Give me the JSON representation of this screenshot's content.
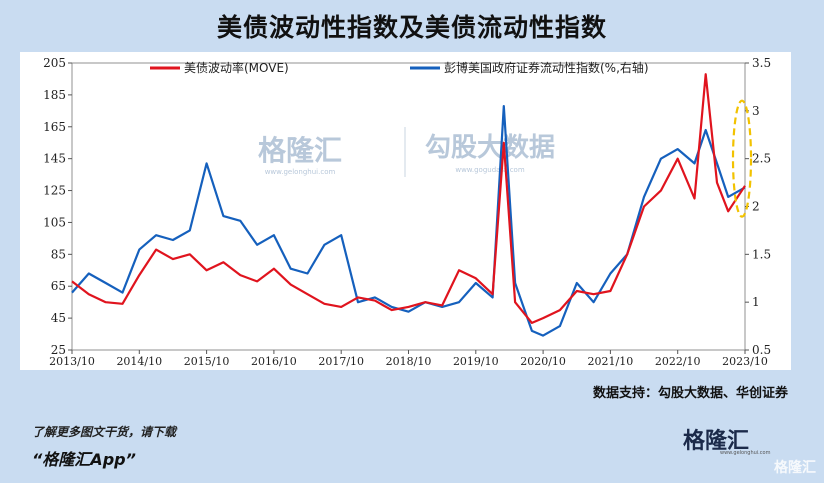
{
  "title": "美债波动性指数及美债流动性指数",
  "source": "数据支持：勾股大数据、华创证券",
  "footer": {
    "line1": "了解更多图文干货，请下载",
    "line2": "“格隆汇App”"
  },
  "brand": {
    "name": "格隆汇",
    "site": "www.gelonghui.com",
    "corner": "格隆汇"
  },
  "watermark": {
    "left_name": "格隆汇",
    "left_site": "www.gelonghui.com",
    "right_name": "勾股大数据",
    "right_site": "www.gogudata.com"
  },
  "colors": {
    "move": "#e0141e",
    "liquidity": "#1560bd",
    "highlight": "#f2c200"
  },
  "chart_data": {
    "type": "line",
    "x": [
      "2013/10",
      "2014/10",
      "2015/10",
      "2016/10",
      "2017/10",
      "2018/10",
      "2019/10",
      "2020/10",
      "2021/10",
      "2022/10",
      "2023/10"
    ],
    "x_start": "2013/10",
    "x_end": "2023/10",
    "y_left": {
      "ticks": [
        25,
        45,
        65,
        85,
        105,
        125,
        145,
        165,
        185,
        205
      ],
      "lim": [
        25,
        205
      ]
    },
    "y_right": {
      "ticks": [
        0.5,
        1,
        1.5,
        2,
        2.5,
        3,
        3.5
      ],
      "lim": [
        0.5,
        3.5
      ]
    },
    "series": [
      {
        "name": "美债波动率(MOVE)",
        "axis": "left",
        "color": "#e0141e",
        "points": [
          [
            "2013/10",
            68
          ],
          [
            "2014/01",
            60
          ],
          [
            "2014/04",
            55
          ],
          [
            "2014/07",
            54
          ],
          [
            "2014/10",
            72
          ],
          [
            "2015/01",
            88
          ],
          [
            "2015/04",
            82
          ],
          [
            "2015/07",
            85
          ],
          [
            "2015/10",
            75
          ],
          [
            "2016/01",
            80
          ],
          [
            "2016/04",
            72
          ],
          [
            "2016/07",
            68
          ],
          [
            "2016/10",
            76
          ],
          [
            "2017/01",
            66
          ],
          [
            "2017/04",
            60
          ],
          [
            "2017/07",
            54
          ],
          [
            "2017/10",
            52
          ],
          [
            "2018/01",
            58
          ],
          [
            "2018/04",
            56
          ],
          [
            "2018/07",
            50
          ],
          [
            "2018/10",
            52
          ],
          [
            "2019/01",
            55
          ],
          [
            "2019/04",
            53
          ],
          [
            "2019/07",
            75
          ],
          [
            "2019/10",
            70
          ],
          [
            "2020/01",
            60
          ],
          [
            "2020/03",
            155
          ],
          [
            "2020/05",
            55
          ],
          [
            "2020/08",
            42
          ],
          [
            "2020/10",
            45
          ],
          [
            "2021/01",
            50
          ],
          [
            "2021/04",
            62
          ],
          [
            "2021/07",
            60
          ],
          [
            "2021/10",
            62
          ],
          [
            "2022/01",
            85
          ],
          [
            "2022/04",
            115
          ],
          [
            "2022/07",
            125
          ],
          [
            "2022/10",
            145
          ],
          [
            "2023/01",
            120
          ],
          [
            "2023/03",
            198
          ],
          [
            "2023/05",
            130
          ],
          [
            "2023/07",
            112
          ],
          [
            "2023/10",
            128
          ]
        ]
      },
      {
        "name": "彭博美国政府证券流动性指数(%,右轴)",
        "axis": "right",
        "color": "#1560bd",
        "points": [
          [
            "2013/10",
            1.1
          ],
          [
            "2014/01",
            1.3
          ],
          [
            "2014/04",
            1.2
          ],
          [
            "2014/07",
            1.1
          ],
          [
            "2014/10",
            1.55
          ],
          [
            "2015/01",
            1.7
          ],
          [
            "2015/04",
            1.65
          ],
          [
            "2015/07",
            1.75
          ],
          [
            "2015/10",
            2.45
          ],
          [
            "2016/01",
            1.9
          ],
          [
            "2016/04",
            1.85
          ],
          [
            "2016/07",
            1.6
          ],
          [
            "2016/10",
            1.7
          ],
          [
            "2017/01",
            1.35
          ],
          [
            "2017/04",
            1.3
          ],
          [
            "2017/07",
            1.6
          ],
          [
            "2017/10",
            1.7
          ],
          [
            "2018/01",
            1.0
          ],
          [
            "2018/04",
            1.05
          ],
          [
            "2018/07",
            0.95
          ],
          [
            "2018/10",
            0.9
          ],
          [
            "2019/01",
            1.0
          ],
          [
            "2019/04",
            0.95
          ],
          [
            "2019/07",
            1.0
          ],
          [
            "2019/10",
            1.2
          ],
          [
            "2020/01",
            1.05
          ],
          [
            "2020/03",
            3.05
          ],
          [
            "2020/05",
            1.2
          ],
          [
            "2020/08",
            0.7
          ],
          [
            "2020/10",
            0.65
          ],
          [
            "2021/01",
            0.75
          ],
          [
            "2021/04",
            1.2
          ],
          [
            "2021/07",
            1.0
          ],
          [
            "2021/10",
            1.3
          ],
          [
            "2022/01",
            1.5
          ],
          [
            "2022/04",
            2.1
          ],
          [
            "2022/07",
            2.5
          ],
          [
            "2022/10",
            2.6
          ],
          [
            "2023/01",
            2.45
          ],
          [
            "2023/03",
            2.8
          ],
          [
            "2023/05",
            2.45
          ],
          [
            "2023/07",
            2.1
          ],
          [
            "2023/10",
            2.2
          ]
        ]
      }
    ],
    "legend": "top",
    "grid": false
  }
}
